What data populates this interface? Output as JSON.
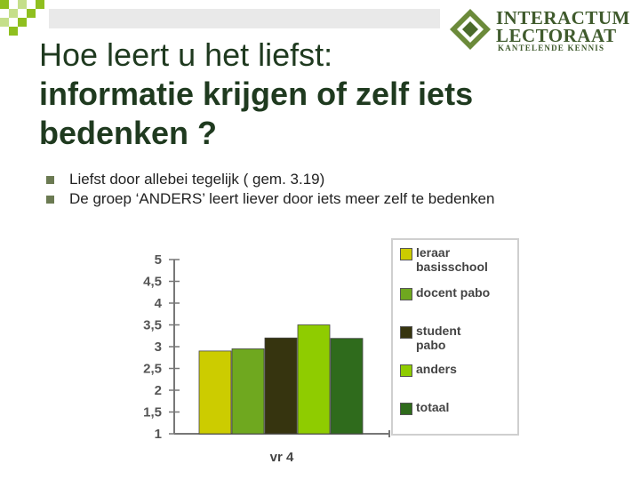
{
  "title": {
    "line1": "Hoe leert u het liefst:",
    "line2": "informatie krijgen of zelf iets bedenken ?"
  },
  "bullets": [
    "Liefst door allebei tegelijk ( gem. 3.19)",
    "De groep ‘ANDERS’ leert liever door iets meer zelf te bedenken"
  ],
  "logo": {
    "line1": "INTERACTUM",
    "line2": "LECTORAAT",
    "line3": "KANTELENDE KENNIS",
    "color": "#3f5a2c"
  },
  "colors": {
    "accent": "#8fbf1f",
    "dark_green": "#3f5a2c"
  },
  "chart_data": {
    "type": "bar",
    "categories": [
      "vr 4"
    ],
    "xlabel": "vr 4",
    "ylim": [
      1,
      5
    ],
    "yticks": [
      "1",
      "1,5",
      "2",
      "2,5",
      "3",
      "3,5",
      "4",
      "4,5",
      "5"
    ],
    "ytick_values": [
      1,
      1.5,
      2,
      2.5,
      3,
      3.5,
      4,
      4.5,
      5
    ],
    "legend_position": "right",
    "grid": false,
    "series": [
      {
        "name": "leraar basisschool",
        "values": [
          2.9
        ],
        "color": "#cccc00"
      },
      {
        "name": "docent pabo",
        "values": [
          2.95
        ],
        "color": "#6fa81f"
      },
      {
        "name": "student pabo",
        "values": [
          3.2
        ],
        "color": "#36340f"
      },
      {
        "name": "anders",
        "values": [
          3.5
        ],
        "color": "#8fcc00"
      },
      {
        "name": "totaal",
        "values": [
          3.19
        ],
        "color": "#2f6b1c"
      }
    ]
  }
}
